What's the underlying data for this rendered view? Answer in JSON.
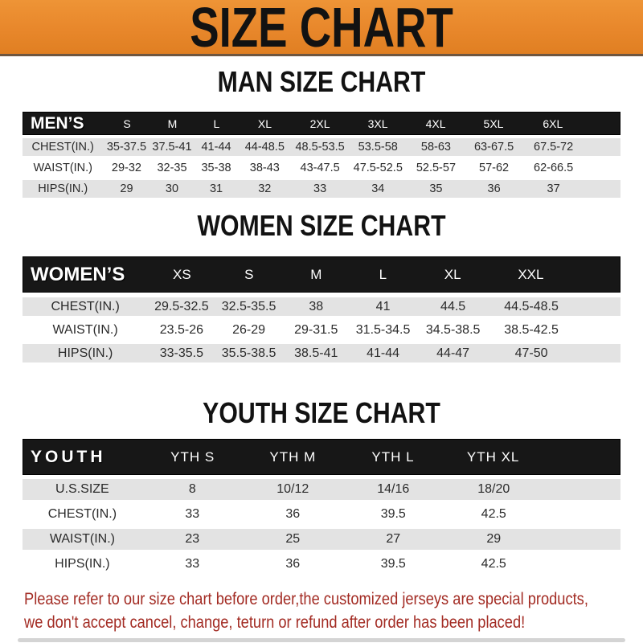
{
  "banner": {
    "title": "SIZE CHART"
  },
  "sections": [
    {
      "heading": "MAN SIZE CHART",
      "table": {
        "label": "MEN’S",
        "columns": [
          "S",
          "M",
          "L",
          "XL",
          "2XL",
          "3XL",
          "4XL",
          "5XL",
          "6XL"
        ],
        "rows": [
          {
            "label": "CHEST(IN.)",
            "values": [
              "35-37.5",
              "37.5-41",
              "41-44",
              "44-48.5",
              "48.5-53.5",
              "53.5-58",
              "58-63",
              "63-67.5",
              "67.5-72"
            ]
          },
          {
            "label": "WAIST(IN.)",
            "values": [
              "29-32",
              "32-35",
              "35-38",
              "38-43",
              "43-47.5",
              "47.5-52.5",
              "52.5-57",
              "57-62",
              "62-66.5"
            ]
          },
          {
            "label": "HIPS(IN.)",
            "values": [
              "29",
              "30",
              "31",
              "32",
              "33",
              "34",
              "35",
              "36",
              "37"
            ]
          }
        ]
      }
    },
    {
      "heading": "WOMEN SIZE CHART",
      "table": {
        "label": "WOMEN’S",
        "columns": [
          "XS",
          "S",
          "M",
          "L",
          "XL",
          "XXL"
        ],
        "rows": [
          {
            "label": "CHEST(IN.)",
            "values": [
              "29.5-32.5",
              "32.5-35.5",
              "38",
              "41",
              "44.5",
              "44.5-48.5"
            ]
          },
          {
            "label": "WAIST(IN.)",
            "values": [
              "23.5-26",
              "26-29",
              "29-31.5",
              "31.5-34.5",
              "34.5-38.5",
              "38.5-42.5"
            ]
          },
          {
            "label": "HIPS(IN.)",
            "values": [
              "33-35.5",
              "35.5-38.5",
              "38.5-41",
              "41-44",
              "44-47",
              "47-50"
            ]
          }
        ]
      }
    },
    {
      "heading": "YOUTH SIZE CHART",
      "table": {
        "label": "YOUTH",
        "columns": [
          "YTH S",
          "YTH M",
          "YTH L",
          "YTH XL"
        ],
        "rows": [
          {
            "label": "U.S.SIZE",
            "values": [
              "8",
              "10/12",
              "14/16",
              "18/20"
            ]
          },
          {
            "label": "CHEST(IN.)",
            "values": [
              "33",
              "36",
              "39.5",
              "42.5"
            ]
          },
          {
            "label": "WAIST(IN.)",
            "values": [
              "23",
              "25",
              "27",
              "29"
            ]
          },
          {
            "label": "HIPS(IN.)",
            "values": [
              "33",
              "36",
              "39.5",
              "42.5"
            ]
          }
        ]
      }
    }
  ],
  "footer": {
    "line1": "Please refer to our size chart before order,the customized jerseys are special products,",
    "line2": "we don't accept cancel, change, teturn or refund after order has been placed!"
  },
  "colors": {
    "banner_orange": "#e8872b",
    "header_bar_black": "#171717",
    "row_gray": "#e3e3e3",
    "footer_red": "#a32c24"
  }
}
